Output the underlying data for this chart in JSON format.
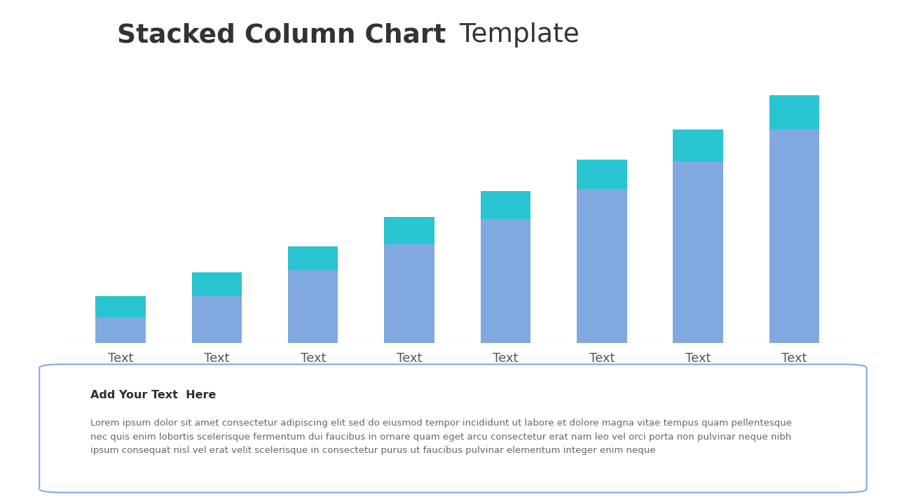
{
  "title_bold": "Stacked Column Chart",
  "title_regular": " Template",
  "categories": [
    "Text",
    "Text",
    "Text",
    "Text",
    "Text",
    "Text",
    "Text",
    "Text"
  ],
  "bottom_values": [
    1.2,
    2.2,
    3.4,
    4.6,
    5.8,
    7.2,
    8.5,
    10.0
  ],
  "top_values": [
    1.0,
    1.1,
    1.1,
    1.3,
    1.3,
    1.4,
    1.5,
    1.6
  ],
  "bar_color_bottom": "#80AADF",
  "bar_color_top": "#29C5D0",
  "background_color": "#ffffff",
  "title_color": "#333333",
  "text_box_title": "Add Your Text  Here",
  "text_box_body": "Lorem ipsum dolor sit amet consectetur adipiscing elit sed do eiusmod tempor incididunt ut labore et dolore magna vitae tempus quam pellentesque\nnec quis enim lobortis scelerisque fermentum dui faucibus in ornare quam eget arcu consectetur erat nam leo vel orci porta non pulvinar neque nibh\nipsum consequat nisl vel erat velit scelerisque in consectetur purus ut faucibus pulvinar elementum integer enim neque",
  "text_box_border_color": "#80AADF",
  "xlabel_color": "#555555",
  "bar_width": 0.52
}
